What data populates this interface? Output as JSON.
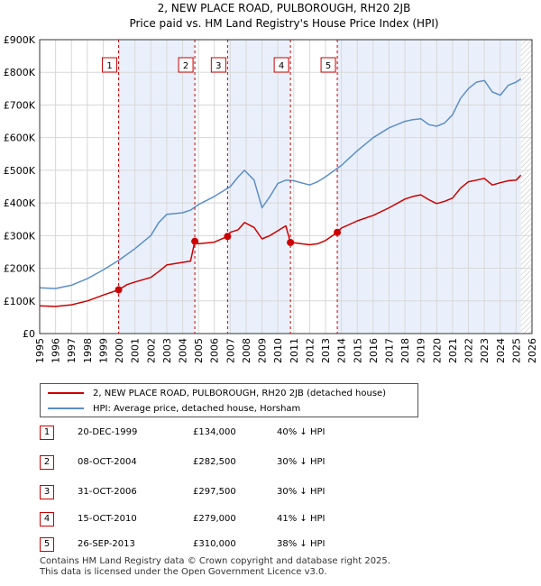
{
  "chart_data": {
    "type": "line",
    "title": "2, NEW PLACE ROAD, PULBOROUGH, RH20 2JB",
    "subtitle": "Price paid vs. HM Land Registry's House Price Index (HPI)",
    "xlabel": "",
    "ylabel": "",
    "xlim": [
      1995,
      2026
    ],
    "ylim": [
      0,
      900000
    ],
    "grid": true,
    "x_ticks": [
      "1995",
      "1996",
      "1997",
      "1998",
      "1999",
      "2000",
      "2001",
      "2002",
      "2003",
      "2004",
      "2005",
      "2006",
      "2007",
      "2008",
      "2009",
      "2010",
      "2011",
      "2012",
      "2013",
      "2014",
      "2015",
      "2016",
      "2017",
      "2018",
      "2019",
      "2020",
      "2021",
      "2022",
      "2023",
      "2024",
      "2025",
      "2026"
    ],
    "y_ticks": [
      {
        "value": 0,
        "label": "£0"
      },
      {
        "value": 100000,
        "label": "£100K"
      },
      {
        "value": 200000,
        "label": "£200K"
      },
      {
        "value": 300000,
        "label": "£300K"
      },
      {
        "value": 400000,
        "label": "£400K"
      },
      {
        "value": 500000,
        "label": "£500K"
      },
      {
        "value": 600000,
        "label": "£600K"
      },
      {
        "value": 700000,
        "label": "£700K"
      },
      {
        "value": 800000,
        "label": "£800K"
      },
      {
        "value": 900000,
        "label": "£900K"
      }
    ],
    "shaded_ranges": [
      [
        1999.97,
        2004.77
      ],
      [
        2006.83,
        2010.79
      ],
      [
        2013.74,
        2025.3
      ]
    ],
    "hatch_from": 2025.3,
    "series": [
      {
        "name": "2, NEW PLACE ROAD, PULBOROUGH, RH20 2JB (detached house)",
        "color": "#cc0000",
        "x": [
          1995,
          1996,
          1997,
          1998,
          1999,
          1999.97,
          2000.5,
          2001,
          2002,
          2002.5,
          2003,
          2004,
          2004.5,
          2004.77,
          2005,
          2006,
          2006.83,
          2007,
          2007.5,
          2007.9,
          2008.5,
          2009,
          2009.5,
          2010,
          2010.5,
          2010.79,
          2011,
          2012,
          2012.5,
          2013,
          2013.74,
          2014,
          2015,
          2016,
          2017,
          2018,
          2018.5,
          2019,
          2019.5,
          2020,
          2020.5,
          2021,
          2021.5,
          2022,
          2022.5,
          2023,
          2023.5,
          2024,
          2024.5,
          2025,
          2025.3
        ],
        "y": [
          85000,
          83000,
          88000,
          100000,
          118000,
          134000,
          150000,
          158000,
          172000,
          190000,
          210000,
          218000,
          222000,
          282500,
          275000,
          280000,
          297500,
          310000,
          318000,
          340000,
          325000,
          290000,
          300000,
          315000,
          330000,
          279000,
          278000,
          272000,
          275000,
          285000,
          310000,
          323000,
          345000,
          362000,
          385000,
          412000,
          420000,
          425000,
          410000,
          398000,
          405000,
          415000,
          445000,
          465000,
          470000,
          475000,
          455000,
          462000,
          468000,
          470000,
          485000
        ]
      },
      {
        "name": "HPI: Average price, detached house, Horsham",
        "color": "#5b8ec8",
        "x": [
          1995,
          1996,
          1997,
          1998,
          1999,
          2000,
          2001,
          2002,
          2002.5,
          2003,
          2004,
          2004.5,
          2005,
          2006,
          2007,
          2007.5,
          2007.9,
          2008.5,
          2009,
          2009.5,
          2010,
          2010.5,
          2011,
          2012,
          2012.5,
          2013,
          2014,
          2015,
          2016,
          2017,
          2018,
          2018.5,
          2019,
          2019.5,
          2020,
          2020.5,
          2021,
          2021.5,
          2022,
          2022.5,
          2023,
          2023.5,
          2024,
          2024.5,
          2025,
          2025.3
        ],
        "y": [
          140000,
          138000,
          148000,
          168000,
          195000,
          225000,
          260000,
          300000,
          340000,
          365000,
          370000,
          378000,
          395000,
          420000,
          450000,
          480000,
          500000,
          470000,
          385000,
          420000,
          460000,
          470000,
          468000,
          455000,
          465000,
          480000,
          515000,
          560000,
          600000,
          630000,
          650000,
          655000,
          658000,
          640000,
          635000,
          645000,
          670000,
          720000,
          750000,
          770000,
          775000,
          740000,
          730000,
          760000,
          770000,
          780000
        ]
      }
    ],
    "sales": [
      {
        "num": "1",
        "x": 1999.97,
        "price": 134000
      },
      {
        "num": "2",
        "x": 2004.77,
        "price": 282500
      },
      {
        "num": "3",
        "x": 2006.83,
        "price": 297500
      },
      {
        "num": "4",
        "x": 2010.79,
        "price": 279000
      },
      {
        "num": "5",
        "x": 2013.74,
        "price": 310000
      }
    ]
  },
  "legend": {
    "property_label": "2, NEW PLACE ROAD, PULBOROUGH, RH20 2JB (detached house)",
    "hpi_label": "HPI: Average price, detached house, Horsham"
  },
  "sales_table": [
    {
      "num": "1",
      "date": "20-DEC-1999",
      "price": "£134,000",
      "hpi": "40% ↓ HPI"
    },
    {
      "num": "2",
      "date": "08-OCT-2004",
      "price": "£282,500",
      "hpi": "30% ↓ HPI"
    },
    {
      "num": "3",
      "date": "31-OCT-2006",
      "price": "£297,500",
      "hpi": "30% ↓ HPI"
    },
    {
      "num": "4",
      "date": "15-OCT-2010",
      "price": "£279,000",
      "hpi": "41% ↓ HPI"
    },
    {
      "num": "5",
      "date": "26-SEP-2013",
      "price": "£310,000",
      "hpi": "38% ↓ HPI"
    }
  ],
  "footer": {
    "line1": "Contains HM Land Registry data © Crown copyright and database right 2025.",
    "line2": "This data is licensed under the Open Government Licence v3.0."
  },
  "colors": {
    "property": "#cc0000",
    "hpi": "#5b8ec8",
    "shade": "#eaf0fb"
  }
}
